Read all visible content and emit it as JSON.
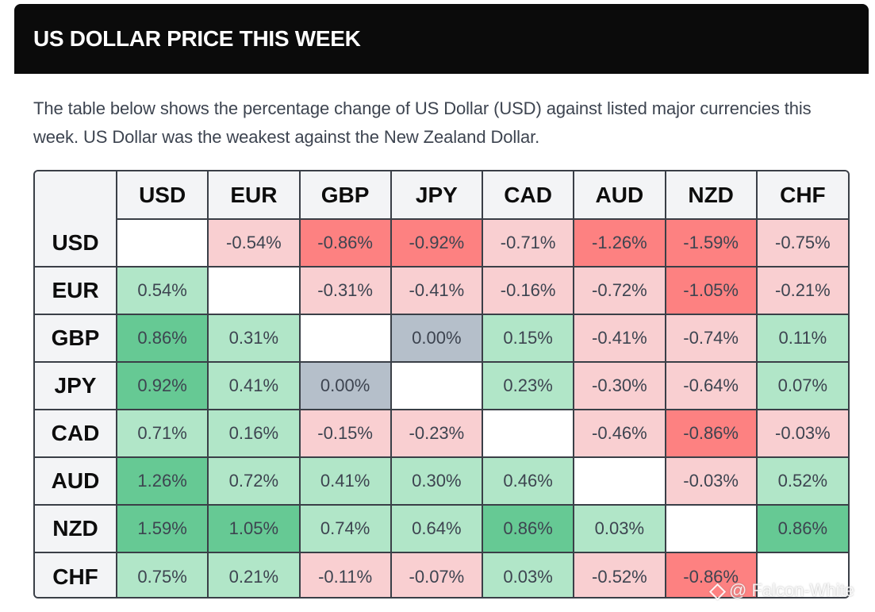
{
  "header": {
    "title": "US DOLLAR PRICE THIS WEEK"
  },
  "intro": {
    "text": "The table below shows the percentage change of US Dollar (USD) against listed major currencies this week. US Dollar was the weakest against the New Zealand Dollar."
  },
  "table": {
    "columns": [
      "USD",
      "EUR",
      "GBP",
      "JPY",
      "CAD",
      "AUD",
      "NZD",
      "CHF"
    ],
    "rows": [
      {
        "label": "USD",
        "cells": [
          "",
          "-0.54%",
          "-0.86%",
          "-0.92%",
          "-0.71%",
          "-1.26%",
          "-1.59%",
          "-0.75%"
        ]
      },
      {
        "label": "EUR",
        "cells": [
          "0.54%",
          "",
          "-0.31%",
          "-0.41%",
          "-0.16%",
          "-0.72%",
          "-1.05%",
          "-0.21%"
        ]
      },
      {
        "label": "GBP",
        "cells": [
          "0.86%",
          "0.31%",
          "",
          "0.00%",
          "0.15%",
          "-0.41%",
          "-0.74%",
          "0.11%"
        ]
      },
      {
        "label": "JPY",
        "cells": [
          "0.92%",
          "0.41%",
          "0.00%",
          "",
          "0.23%",
          "-0.30%",
          "-0.64%",
          "0.07%"
        ]
      },
      {
        "label": "CAD",
        "cells": [
          "0.71%",
          "0.16%",
          "-0.15%",
          "-0.23%",
          "",
          "-0.46%",
          "-0.86%",
          "-0.03%"
        ]
      },
      {
        "label": "AUD",
        "cells": [
          "1.26%",
          "0.72%",
          "0.41%",
          "0.30%",
          "0.46%",
          "",
          "-0.03%",
          "0.52%"
        ]
      },
      {
        "label": "NZD",
        "cells": [
          "1.59%",
          "1.05%",
          "0.74%",
          "0.64%",
          "0.86%",
          "0.03%",
          "",
          "0.86%"
        ]
      },
      {
        "label": "CHF",
        "cells": [
          "0.75%",
          "0.21%",
          "-0.11%",
          "-0.07%",
          "0.03%",
          "-0.52%",
          "-0.86%",
          ""
        ]
      }
    ],
    "shading": [
      [
        "self",
        "neg-light",
        "neg-strong",
        "neg-strong",
        "neg-light",
        "neg-strong",
        "neg-strong",
        "neg-light"
      ],
      [
        "pos-light",
        "self",
        "neg-light",
        "neg-light",
        "neg-light",
        "neg-light",
        "neg-strong",
        "neg-light"
      ],
      [
        "pos-strong",
        "pos-light",
        "self",
        "neutral",
        "pos-light",
        "neg-light",
        "neg-light",
        "pos-light"
      ],
      [
        "pos-strong",
        "pos-light",
        "neutral",
        "self",
        "pos-light",
        "neg-light",
        "neg-light",
        "pos-light"
      ],
      [
        "pos-light",
        "pos-light",
        "neg-light",
        "neg-light",
        "self",
        "neg-light",
        "neg-strong",
        "neg-light"
      ],
      [
        "pos-strong",
        "pos-light",
        "pos-light",
        "pos-light",
        "pos-light",
        "self",
        "neg-light",
        "pos-light"
      ],
      [
        "pos-strong",
        "pos-strong",
        "pos-light",
        "pos-light",
        "pos-strong",
        "pos-light",
        "self",
        "pos-strong"
      ],
      [
        "pos-light",
        "pos-light",
        "neg-light",
        "neg-light",
        "pos-light",
        "neg-light",
        "neg-strong",
        "self"
      ]
    ],
    "colors": {
      "neg-light": "#f9cfd1",
      "neg-strong": "#fd8181",
      "pos-light": "#b1e6c8",
      "pos-strong": "#66c994",
      "neutral": "#b5bfca",
      "self": "#ffffff"
    }
  },
  "watermark": {
    "icon": "binance-logo-icon",
    "text": "@ Falcon-White"
  }
}
